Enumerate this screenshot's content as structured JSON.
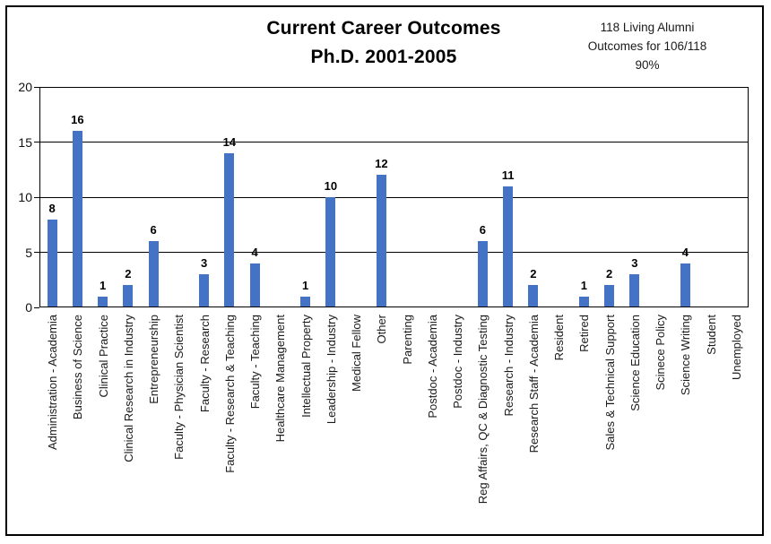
{
  "title": {
    "line1": "Current Career Outcomes",
    "line2": "Ph.D. 2001-2005"
  },
  "annotation": {
    "line1": "118 Living Alumni",
    "line2": "Outcomes for 106/118",
    "line3": "90%"
  },
  "colors": {
    "bar": "#4472C4",
    "grid": "#000000",
    "text": "#1a1a1a"
  },
  "chart_data": {
    "type": "bar",
    "title": "Current Career Outcomes Ph.D. 2001-2005",
    "subtitle_note": "118 Living Alumni Outcomes for 106/118 90%",
    "categories": [
      "Administration - Academia",
      "Business of Science",
      "Clinical Practice",
      "Clinical Research in Industry",
      "Entrepreneurship",
      "Faculty - Physician Scientist",
      "Faculty - Research",
      "Faculty - Research & Teaching",
      "Faculty - Teaching",
      "Healthcare Management",
      "Intellectual Property",
      "Leadership - Industry",
      "Medical Fellow",
      "Other",
      "Parenting",
      "Postdoc - Academia",
      "Postdoc - Industry",
      "Reg Affairs, QC & Diagnostic Testing",
      "Research - Industry",
      "Research Staff - Academia",
      "Resident",
      "Retired",
      "Sales & Technical Support",
      "Science Education",
      "Scinece Policy",
      "Science Writing",
      "Student",
      "Unemployed"
    ],
    "values": [
      8,
      16,
      1,
      2,
      6,
      0,
      3,
      14,
      4,
      0,
      1,
      10,
      0,
      12,
      0,
      0,
      0,
      6,
      11,
      2,
      0,
      1,
      2,
      3,
      0,
      4,
      0,
      0
    ],
    "xlabel": "",
    "ylabel": "",
    "ylim": [
      0,
      20
    ],
    "yticks": [
      0,
      5,
      10,
      15,
      20
    ],
    "grid": "horizontal",
    "legend": "none",
    "bar_color": "#4472C4",
    "data_labels": "values shown above bars; zero values show no bar and no label"
  }
}
